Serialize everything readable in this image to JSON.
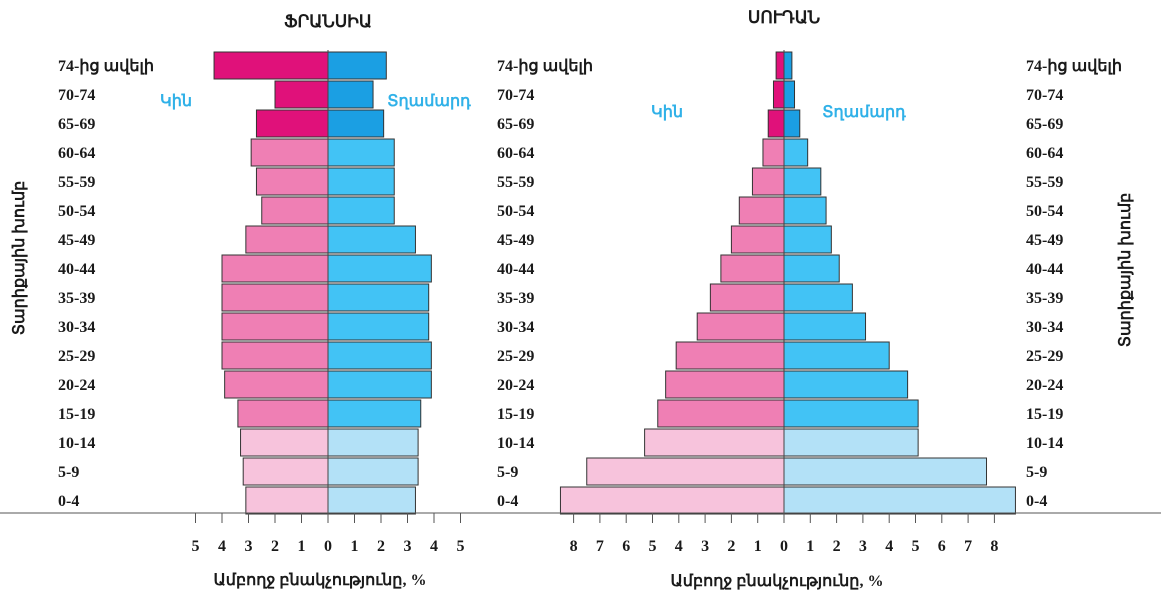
{
  "chart_data": [
    {
      "type": "bar",
      "orientation": "horizontal-diverging",
      "title": "ՖՐԱՆՍԻԱ",
      "categories": [
        "74-ից ավելի",
        "70-74",
        "65-69",
        "60-64",
        "55-59",
        "50-54",
        "45-49",
        "40-44",
        "35-39",
        "30-34",
        "25-29",
        "20-24",
        "15-19",
        "10-14",
        "5-9",
        "0-4"
      ],
      "series": [
        {
          "name": "Կին",
          "values": [
            4.3,
            2.0,
            2.7,
            2.9,
            2.7,
            2.5,
            3.1,
            4.0,
            4.0,
            4.0,
            4.0,
            3.9,
            3.4,
            3.3,
            3.2,
            3.1
          ]
        },
        {
          "name": "Տղամարդ",
          "values": [
            2.2,
            1.7,
            2.1,
            2.5,
            2.5,
            2.5,
            3.3,
            3.9,
            3.8,
            3.8,
            3.9,
            3.9,
            3.5,
            3.4,
            3.4,
            3.3
          ]
        }
      ],
      "xlabel": "Ամբողջ բնակչությունը, %",
      "ylabel": "Տարիքային խումբ",
      "xlim": [
        -5,
        5
      ],
      "x_ticks": [
        "5",
        "4",
        "3",
        "2",
        "1",
        "0",
        "1",
        "2",
        "3",
        "4",
        "5"
      ]
    },
    {
      "type": "bar",
      "orientation": "horizontal-diverging",
      "title": "ՍՈՒԴԱՆ",
      "categories": [
        "74-ից ավելի",
        "70-74",
        "65-69",
        "60-64",
        "55-59",
        "50-54",
        "45-49",
        "40-44",
        "35-39",
        "30-34",
        "25-29",
        "20-24",
        "15-19",
        "10-14",
        "5-9",
        "0-4"
      ],
      "series": [
        {
          "name": "Կին",
          "values": [
            0.3,
            0.4,
            0.6,
            0.8,
            1.2,
            1.7,
            2.0,
            2.4,
            2.8,
            3.3,
            4.1,
            4.5,
            4.8,
            5.3,
            7.5,
            8.5
          ]
        },
        {
          "name": "Տղամարդ",
          "values": [
            0.3,
            0.4,
            0.6,
            0.9,
            1.4,
            1.6,
            1.8,
            2.1,
            2.6,
            3.1,
            4.0,
            4.7,
            5.1,
            5.1,
            7.7,
            8.8
          ]
        }
      ],
      "xlabel": "Ամբողջ բնակչությունը, %",
      "ylabel": "Տարիքային խումբ",
      "xlim": [
        -9,
        9
      ],
      "x_ticks": [
        "8",
        "7",
        "6",
        "5",
        "4",
        "3",
        "2",
        "1",
        "0",
        "1",
        "2",
        "3",
        "4",
        "5",
        "6",
        "7",
        "8"
      ]
    }
  ],
  "colors": {
    "female_old": "#e0117a",
    "female_adult": "#ef7fb4",
    "female_young": "#f7c3dc",
    "male_old": "#1b9fe3",
    "male_adult": "#42c3f5",
    "male_young": "#b3e1f7",
    "label_sex": "#30b1e8",
    "axis": "#555555"
  }
}
